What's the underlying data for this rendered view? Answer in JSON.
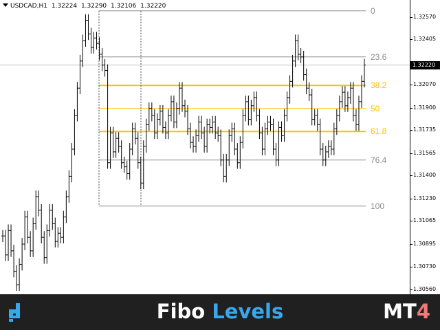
{
  "header": {
    "symbol": "USDCAD,H1",
    "open": "1.32224",
    "high": "1.32290",
    "low": "1.32106",
    "close": "1.32220"
  },
  "price_axis": {
    "ticks": [
      "1.32570",
      "1.32405",
      "1.32070",
      "1.31900",
      "1.31735",
      "1.31565",
      "1.31400",
      "1.31230",
      "1.31065",
      "1.30895",
      "1.30730",
      "1.30560"
    ],
    "current_price": "1.32220"
  },
  "fibo_levels": [
    {
      "label": "0",
      "color": "#8c8c8c",
      "highlight": false
    },
    {
      "label": "23.6",
      "color": "#8c8c8c",
      "highlight": false
    },
    {
      "label": "38.2",
      "color": "#ffc000",
      "highlight": true
    },
    {
      "label": "50",
      "color": "#ffc000",
      "highlight": false
    },
    {
      "label": "61.8",
      "color": "#ffc000",
      "highlight": true
    },
    {
      "label": "76.4",
      "color": "#8c8c8c",
      "highlight": false
    },
    {
      "label": "100",
      "color": "#8c8c8c",
      "highlight": false
    }
  ],
  "banner": {
    "title_part1": "Fibo",
    "title_part2": "Levels",
    "platform_part1": "MT",
    "platform_part2": "4",
    "logo_icon": "brand-logo-icon"
  },
  "colors": {
    "fib_gold": "#ffc000",
    "fib_gray": "#8c8c8c",
    "banner_bg": "#202020",
    "accent_blue": "#3aa7ea",
    "accent_pink": "#f07a7a"
  },
  "chart_data": {
    "type": "line",
    "title": "USDCAD,H1",
    "timeframe": "H1",
    "ylim": [
      1.3053,
      1.327
    ],
    "close_price": 1.3222,
    "fib_high": 1.3262,
    "fib_low": 1.3118,
    "fib_levels_pct": [
      0,
      23.6,
      38.2,
      50,
      61.8,
      76.4,
      100
    ],
    "series": [
      {
        "values": [
          1.3096,
          1.3082,
          1.31,
          1.3085,
          1.307,
          1.306,
          1.3075,
          1.309,
          1.311,
          1.3095,
          1.3085,
          1.3105,
          1.3125,
          1.3115,
          1.3095,
          1.308,
          1.31,
          1.3115,
          1.3105,
          1.3092,
          1.3098,
          1.3095,
          1.311,
          1.3125,
          1.314,
          1.316,
          1.3185,
          1.3205,
          1.3225,
          1.324,
          1.3255,
          1.3245,
          1.3235,
          1.3242,
          1.3238,
          1.323,
          1.3222,
          1.3218,
          1.315,
          1.3172,
          1.3158,
          1.3168,
          1.3162,
          1.315,
          1.3147,
          1.3142,
          1.316,
          1.3175,
          1.3168,
          1.315,
          1.3135,
          1.3162,
          1.3178,
          1.319,
          1.3185,
          1.3172,
          1.3182,
          1.3188,
          1.3176,
          1.3172,
          1.3185,
          1.3195,
          1.318,
          1.319,
          1.3205,
          1.3192,
          1.3188,
          1.3175,
          1.3165,
          1.3162,
          1.317,
          1.318,
          1.3172,
          1.3162,
          1.3178,
          1.3176,
          1.318,
          1.3172,
          1.317,
          1.3152,
          1.314,
          1.3152,
          1.317,
          1.3175,
          1.316,
          1.315,
          1.3165,
          1.3185,
          1.3195,
          1.3182,
          1.3192,
          1.3198,
          1.3185,
          1.3172,
          1.316,
          1.3175,
          1.318,
          1.3178,
          1.316,
          1.3152,
          1.3176,
          1.317,
          1.3185,
          1.3198,
          1.321,
          1.3225,
          1.324,
          1.323,
          1.3228,
          1.3215,
          1.3205,
          1.32,
          1.3182,
          1.3185,
          1.3178,
          1.316,
          1.3152,
          1.3158,
          1.3162,
          1.316,
          1.3175,
          1.3185,
          1.3195,
          1.3202,
          1.3192,
          1.3198,
          1.3205,
          1.3185,
          1.3178,
          1.3195,
          1.321,
          1.3222
        ]
      }
    ]
  }
}
